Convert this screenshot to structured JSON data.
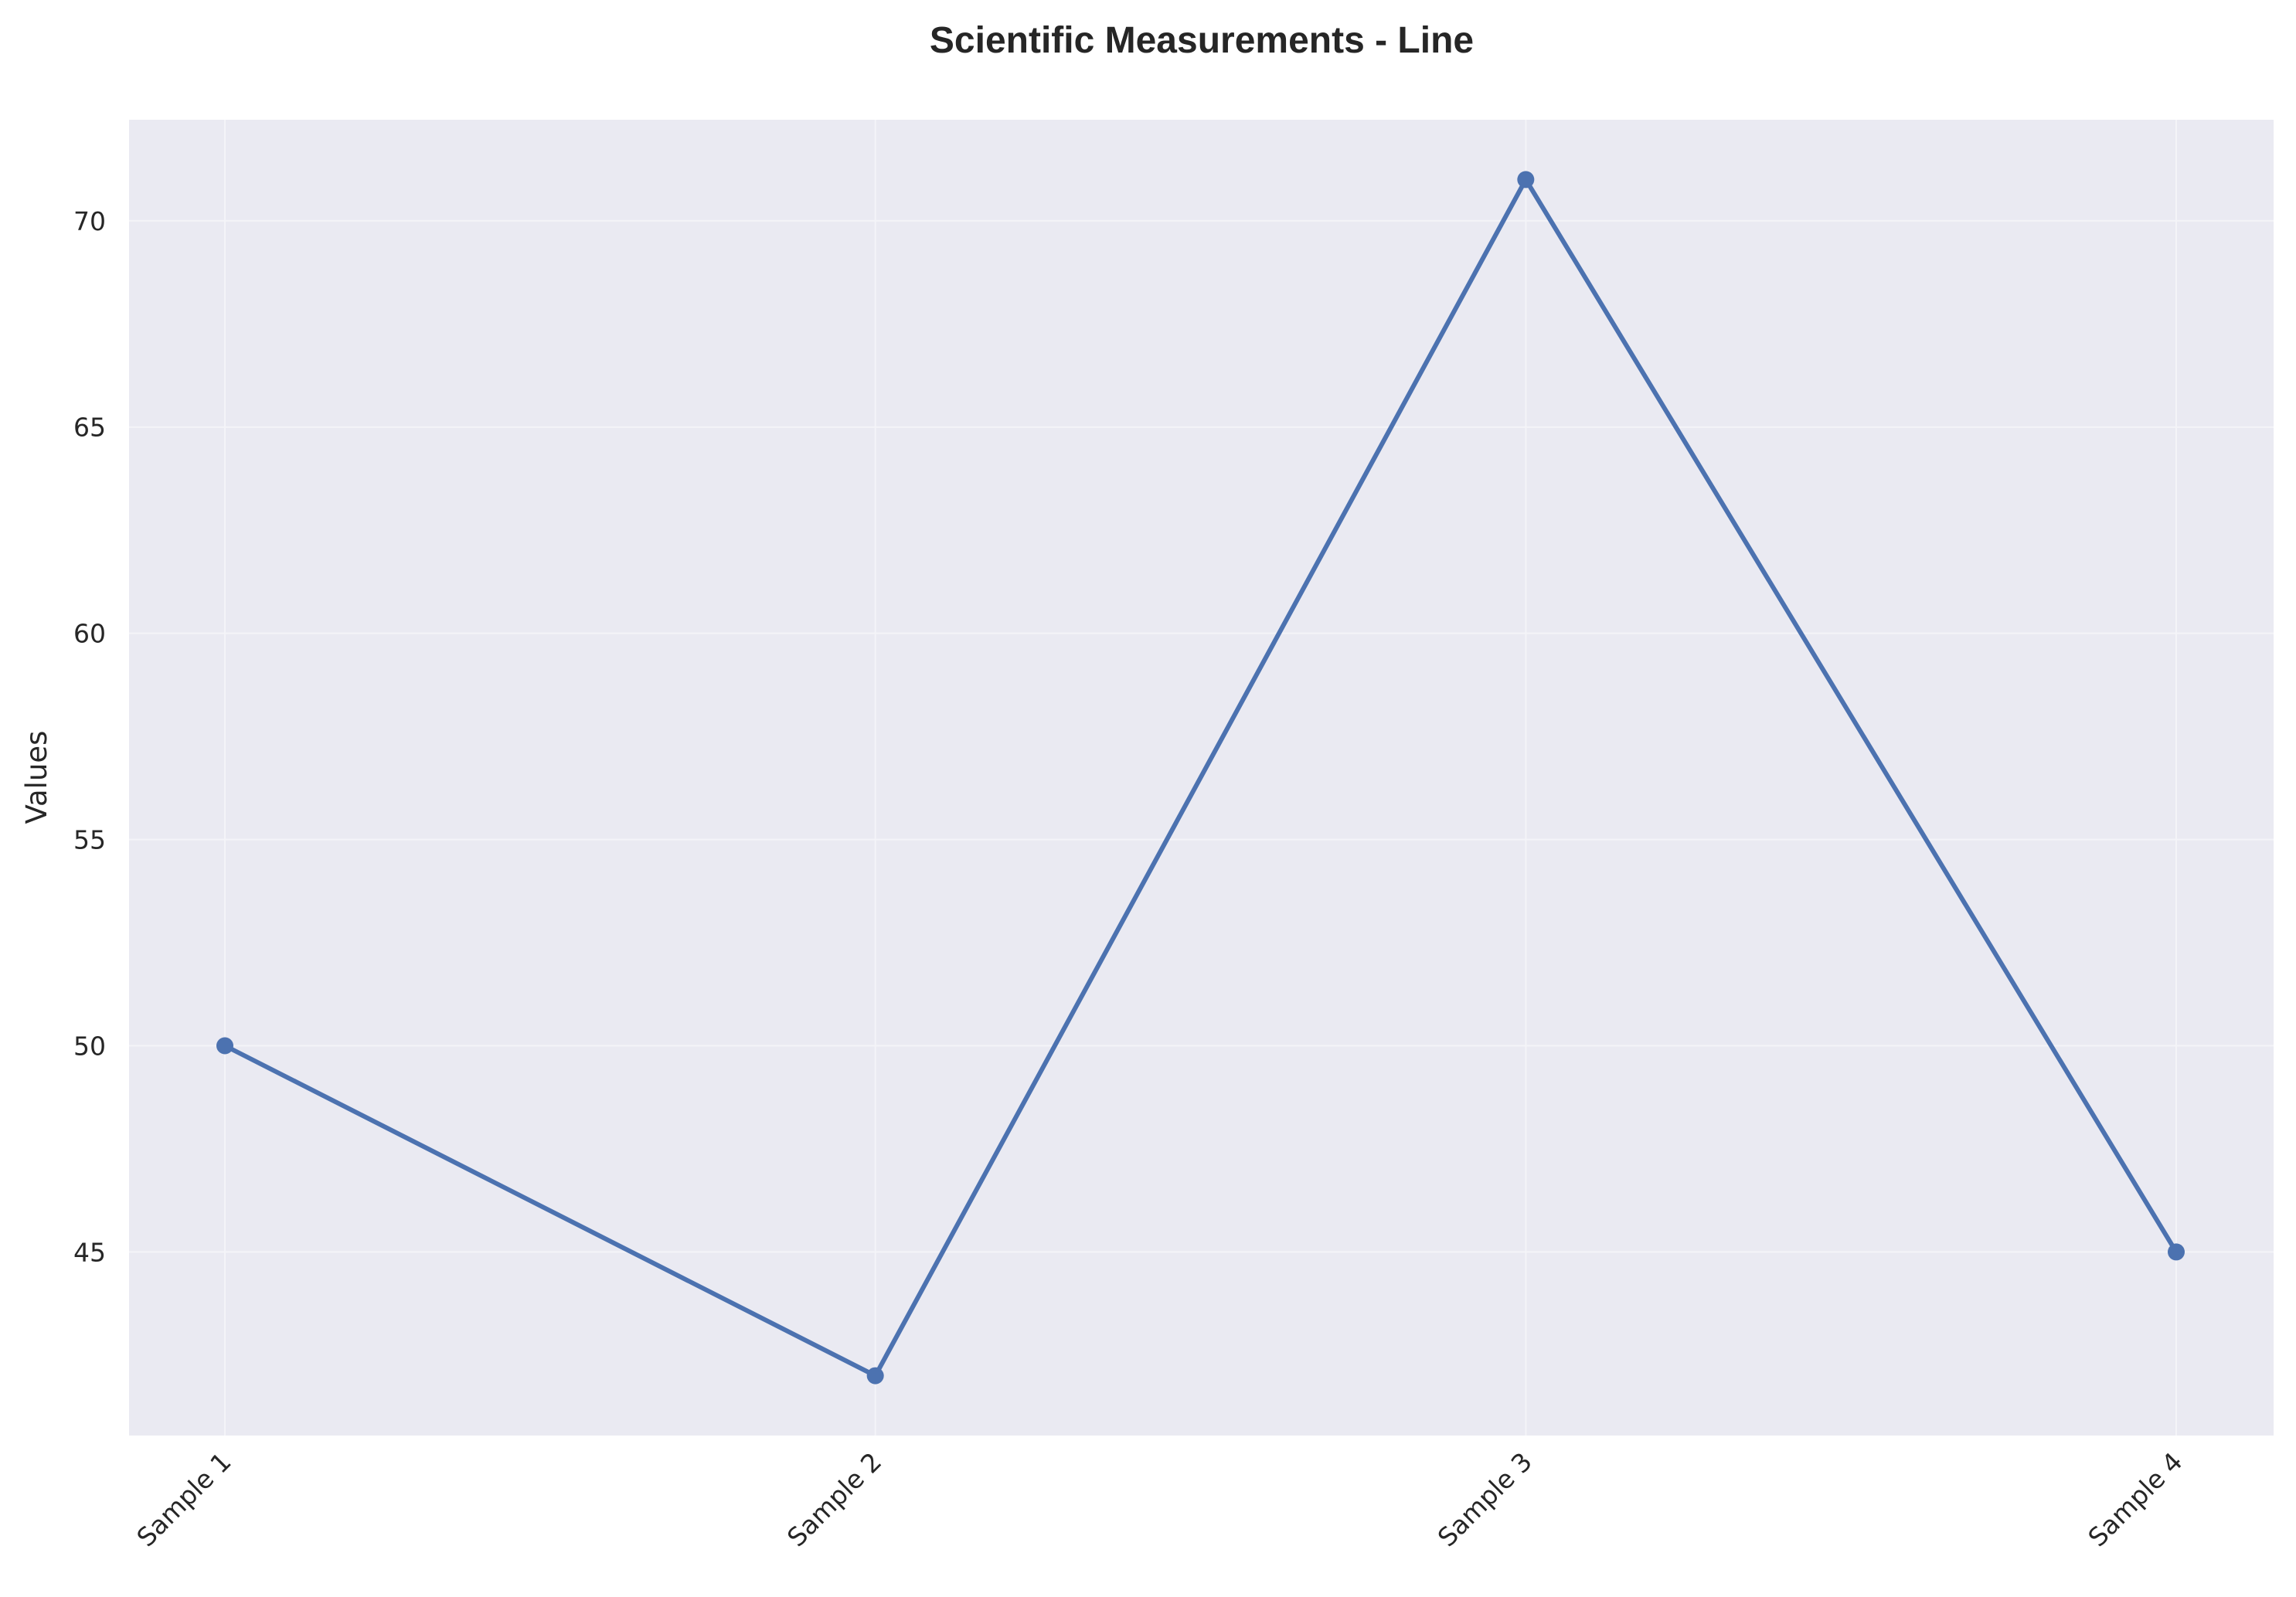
{
  "chart_data": {
    "type": "line",
    "title": "Scientific Measurements - Line",
    "xlabel": "",
    "ylabel": "Values",
    "categories": [
      "Sample 1",
      "Sample 2",
      "Sample 3",
      "Sample 4"
    ],
    "series": [
      {
        "values": [
          50,
          42,
          71,
          45
        ],
        "color": "#4c72b0",
        "marker": "circle"
      }
    ],
    "ylim": [
      40.55,
      72.45
    ],
    "yticks": [
      45,
      50,
      55,
      60,
      65,
      70
    ],
    "grid": true,
    "legend": "none",
    "background": "#eaeaf2",
    "grid_color": "#f4f4f8"
  }
}
